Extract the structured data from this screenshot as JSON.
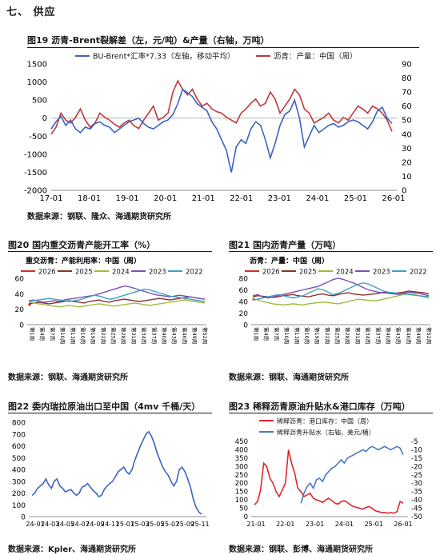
{
  "section": {
    "title": "七、 供应"
  },
  "figures": [
    {
      "id": "fig19",
      "title": "图19  沥青-Brent裂解差（左，元/吨）&产量（右轴，万吨）",
      "source": "数据来源：钢联、隆众、海通期货研究所"
    },
    {
      "id": "fig20",
      "title": "图20  国内重交沥青产能开工率（%）",
      "source": "数据来源：钢联、海通期货研究所"
    },
    {
      "id": "fig21",
      "title": "图21  国内沥青产量（万吨）",
      "source": "数据来源：钢联、海通期货研究所"
    },
    {
      "id": "fig22",
      "title": "图22  委内瑞拉原油出口至中国（4mv 千桶/天）",
      "source": "数据来源：Kpler、海通期货研究所"
    },
    {
      "id": "fig23",
      "title": "图23  稀释沥青原油升贴水&港口库存（万吨）",
      "source": "数据来源：钢联、彭博、海通期货研究所"
    }
  ],
  "chart_data": [
    {
      "id": "fig19",
      "type": "line",
      "x_ticks": [
        "17-01",
        "18-01",
        "19-01",
        "20-01",
        "21-01",
        "22-01",
        "23-01",
        "24-01",
        "25-01",
        "26-01"
      ],
      "ylim": [
        -2000,
        1500
      ],
      "y_ticks": [
        1500,
        1000,
        500,
        0,
        -500,
        -1000,
        -1500,
        -2000
      ],
      "y2lim": [
        0,
        90
      ],
      "y2_ticks": [
        90,
        80,
        70,
        60,
        50,
        40,
        30,
        20,
        10,
        0
      ],
      "legend_position": "top",
      "series": [
        {
          "name": "BU-Brent*汇率*7.33（左轴，移动平均）",
          "axis": "left",
          "color": "#3a63c4",
          "values": [
            -300,
            -100,
            50,
            -200,
            -50,
            -300,
            -400,
            -250,
            -300,
            -150,
            -100,
            -200,
            -250,
            -400,
            -300,
            -200,
            -100,
            -50,
            0,
            -150,
            -250,
            -300,
            -200,
            -100,
            -50,
            100,
            400,
            800,
            700,
            600,
            400,
            300,
            200,
            -100,
            -300,
            -600,
            -900,
            -1500,
            -800,
            -600,
            -700,
            -300,
            -100,
            -200,
            -600,
            -1100,
            -700,
            -200,
            100,
            200,
            500,
            0,
            -800,
            -500,
            -200,
            -400,
            -300,
            -200,
            -150,
            -250,
            -200,
            -100,
            -50,
            -100,
            -200,
            -300,
            -100,
            200,
            300,
            0,
            -150
          ]
        },
        {
          "name": "沥青：产量：中国（周）",
          "axis": "right",
          "color": "#c0373c",
          "values": [
            40,
            45,
            55,
            50,
            48,
            52,
            58,
            50,
            45,
            48,
            55,
            52,
            50,
            47,
            45,
            48,
            50,
            46,
            44,
            50,
            55,
            60,
            50,
            52,
            55,
            70,
            78,
            72,
            68,
            72,
            65,
            60,
            62,
            58,
            56,
            55,
            52,
            50,
            48,
            55,
            58,
            62,
            65,
            60,
            62,
            70,
            65,
            55,
            60,
            65,
            72,
            68,
            58,
            55,
            48,
            50,
            52,
            55,
            50,
            48,
            52,
            50,
            55,
            60,
            58,
            55,
            60,
            58,
            55,
            50,
            42
          ]
        }
      ]
    },
    {
      "id": "fig20",
      "type": "line",
      "subtitle": "重交沥青：产能利用率：中国（周）",
      "ylim": [
        0,
        60
      ],
      "y_ticks": [
        60,
        40,
        20,
        0
      ],
      "legend_position": "top",
      "series": [
        {
          "name": "2026",
          "color": "#d42c2c",
          "values": [
            26
          ]
        },
        {
          "name": "2025",
          "color": "#8a3030",
          "values": [
            27,
            28,
            29,
            28,
            27,
            28,
            29,
            30,
            31,
            30,
            29,
            28,
            30,
            31,
            32,
            30,
            29,
            31,
            32,
            33,
            32,
            31,
            30,
            31,
            32,
            33,
            34,
            33,
            32,
            33,
            34,
            35,
            36,
            35,
            34,
            33
          ]
        },
        {
          "name": "2024",
          "color": "#9cbc3c",
          "values": [
            29,
            28,
            27,
            26,
            25,
            24,
            23,
            24,
            25,
            24,
            23,
            24,
            25,
            26,
            27,
            26,
            25,
            24,
            25,
            26,
            27,
            28,
            27,
            26,
            25,
            26,
            27,
            28,
            29,
            30,
            31,
            32,
            31,
            30,
            29,
            28
          ]
        },
        {
          "name": "2023",
          "color": "#7b52b0",
          "values": [
            31,
            32,
            30,
            29,
            30,
            31,
            30,
            32,
            33,
            34,
            35,
            36,
            37,
            38,
            40,
            42,
            44,
            46,
            48,
            50,
            49,
            47,
            45,
            43,
            41,
            39,
            38,
            37,
            36,
            37,
            38,
            37,
            36,
            35,
            34,
            33
          ]
        },
        {
          "name": "2022",
          "color": "#3aa0c4",
          "values": [
            30,
            31,
            32,
            33,
            34,
            33,
            32,
            31,
            30,
            31,
            32,
            34,
            36,
            38,
            37,
            35,
            33,
            34,
            36,
            38,
            40,
            42,
            44,
            46,
            45,
            43,
            41,
            39,
            37,
            36,
            35,
            34,
            33,
            32,
            31,
            30
          ]
        }
      ]
    },
    {
      "id": "fig21",
      "type": "line",
      "subtitle": "沥青：产量：中国（周）",
      "ylim": [
        0,
        80
      ],
      "y_ticks": [
        80,
        60,
        40,
        20,
        0
      ],
      "legend_position": "top",
      "series": [
        {
          "name": "2026",
          "color": "#d42c2c",
          "values": [
            44
          ]
        },
        {
          "name": "2025",
          "color": "#8a3030",
          "values": [
            48,
            50,
            49,
            48,
            47,
            48,
            50,
            51,
            52,
            50,
            49,
            48,
            50,
            52,
            53,
            51,
            50,
            52,
            54,
            55,
            53,
            52,
            51,
            52,
            53,
            54,
            56,
            55,
            54,
            55,
            56,
            58,
            57,
            56,
            55,
            53
          ]
        },
        {
          "name": "2024",
          "color": "#9cbc3c",
          "values": [
            45,
            43,
            40,
            38,
            36,
            35,
            34,
            35,
            36,
            35,
            34,
            36,
            37,
            38,
            39,
            38,
            37,
            36,
            38,
            40,
            42,
            44,
            43,
            42,
            41,
            42,
            44,
            46,
            48,
            50,
            52,
            53,
            52,
            50,
            48,
            46
          ]
        },
        {
          "name": "2023",
          "color": "#7b52b0",
          "values": [
            50,
            52,
            48,
            46,
            48,
            50,
            52,
            54,
            56,
            58,
            60,
            62,
            64,
            66,
            70,
            74,
            78,
            80,
            78,
            75,
            72,
            68,
            64,
            60,
            58,
            56,
            55,
            54,
            53,
            52,
            54,
            56,
            55,
            54,
            52,
            50
          ]
        },
        {
          "name": "2022",
          "color": "#3aa0c4",
          "values": [
            42,
            44,
            46,
            48,
            50,
            52,
            50,
            48,
            46,
            48,
            50,
            54,
            58,
            62,
            60,
            56,
            52,
            54,
            58,
            62,
            66,
            70,
            72,
            70,
            66,
            62,
            58,
            56,
            55,
            54,
            53,
            52,
            51,
            50,
            49,
            48
          ]
        }
      ]
    },
    {
      "id": "fig22",
      "type": "line",
      "x_ticks": [
        "24-01",
        "24-03",
        "24-05",
        "24-07",
        "24-09",
        "24-11",
        "25-01",
        "25-03",
        "25-05",
        "25-07",
        "25-09",
        "25-11"
      ],
      "ylim": [
        0,
        800
      ],
      "y_ticks": [
        800,
        700,
        600,
        500,
        400,
        300,
        200,
        100,
        0
      ],
      "series": [
        {
          "name": "委内瑞拉原油出口至中国",
          "color": "#3a63c4",
          "values": [
            180,
            200,
            240,
            260,
            280,
            320,
            270,
            240,
            300,
            320,
            260,
            240,
            210,
            220,
            230,
            200,
            180,
            200,
            250,
            260,
            280,
            250,
            220,
            200,
            170,
            180,
            230,
            260,
            280,
            300,
            340,
            380,
            400,
            420,
            380,
            360,
            400,
            480,
            540,
            600,
            650,
            700,
            720,
            680,
            620,
            540,
            480,
            420,
            380,
            350,
            300,
            260,
            300,
            400,
            420,
            380,
            320,
            250,
            150,
            80,
            40,
            20
          ]
        }
      ]
    },
    {
      "id": "fig23",
      "type": "line",
      "x_ticks": [
        "21-01",
        "22-01",
        "23-01",
        "24-01",
        "25-01",
        "26-01"
      ],
      "ylim": [
        0,
        450
      ],
      "y_ticks": [
        450,
        400,
        350,
        300,
        250,
        200,
        150,
        100,
        50,
        0
      ],
      "y2lim": [
        -50,
        -5
      ],
      "y2_ticks": [
        -5,
        -10,
        -15,
        -20,
        -25,
        -30,
        -35,
        -40,
        -45,
        -50
      ],
      "legend_position": "top-left",
      "series": [
        {
          "name": "稀释沥青：港口库存：中国（周）",
          "axis": "left",
          "color": "#e0262a",
          "values": [
            70,
            90,
            160,
            320,
            300,
            230,
            200,
            150,
            120,
            160,
            200,
            400,
            320,
            260,
            170,
            150,
            120,
            130,
            140,
            110,
            100,
            95,
            85,
            100,
            110,
            95,
            80,
            75,
            90,
            95,
            85,
            70,
            60,
            55,
            50,
            45,
            55,
            60,
            50,
            35,
            30,
            25,
            25,
            20,
            25,
            20,
            30,
            90,
            80
          ]
        },
        {
          "name": "稀释沥青升贴水（右轴，美元/桶）",
          "axis": "right",
          "color": "#4a78c4",
          "values": [
            null,
            null,
            null,
            null,
            null,
            null,
            null,
            null,
            null,
            null,
            null,
            null,
            null,
            null,
            null,
            -42,
            -36,
            -32,
            -30,
            -33,
            -28,
            -27,
            -29,
            -25,
            -23,
            -21,
            -20,
            -18,
            -16,
            -18,
            -15,
            -14,
            -13,
            -12,
            -11,
            -10,
            -11,
            -9,
            -8,
            -9,
            -10,
            -9,
            -8,
            -9,
            -10,
            -9,
            -8,
            -9,
            -13
          ]
        }
      ]
    }
  ]
}
